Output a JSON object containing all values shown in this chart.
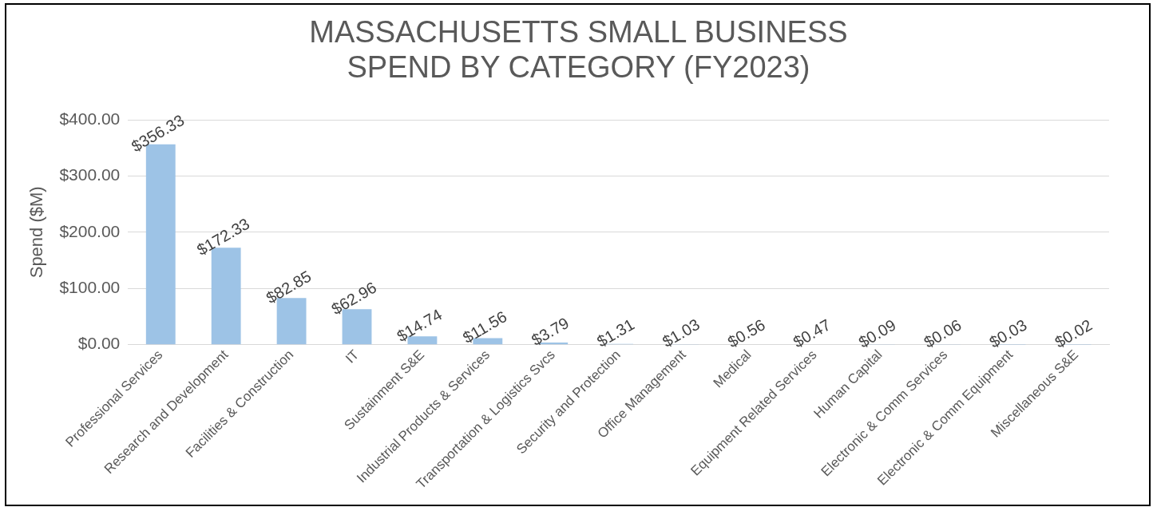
{
  "chart_data": {
    "type": "bar",
    "title": "MASSACHUSETTS SMALL BUSINESS SPEND BY CATEGORY (FY2023)",
    "ylabel": "Spend ($M)",
    "categories": [
      "Professional Services",
      "Research and Development",
      "Facilities & Construction",
      "IT",
      "Sustainment S&E",
      "Industrial Products & Services",
      "Transportation & Logistics Svcs",
      "Security and Protection",
      "Office Management",
      "Medical",
      "Equipment Related Services",
      "Human Capital",
      "Electronic & Comm Services",
      "Electronic & Comm Equipment",
      "Miscellaneous S&E"
    ],
    "values": [
      356.33,
      172.33,
      82.85,
      62.96,
      14.74,
      11.56,
      3.79,
      1.31,
      1.03,
      0.56,
      0.47,
      0.09,
      0.06,
      0.03,
      0.02
    ],
    "value_labels": [
      "$356.33",
      "$172.33",
      "$82.85",
      "$62.96",
      "$14.74",
      "$11.56",
      "$3.79",
      "$1.31",
      "$1.03",
      "$0.56",
      "$0.47",
      "$0.09",
      "$0.06",
      "$0.03",
      "$0.02"
    ],
    "color": "#9dc3e6",
    "ylim": [
      0,
      400
    ],
    "yticks": [
      {
        "value": 0,
        "label": "$0.00"
      },
      {
        "value": 100,
        "label": "$100.00"
      },
      {
        "value": 200,
        "label": "$200.00"
      },
      {
        "value": 300,
        "label": "$300.00"
      },
      {
        "value": 400,
        "label": "$400.00"
      }
    ],
    "grid": "y",
    "legend": false
  }
}
